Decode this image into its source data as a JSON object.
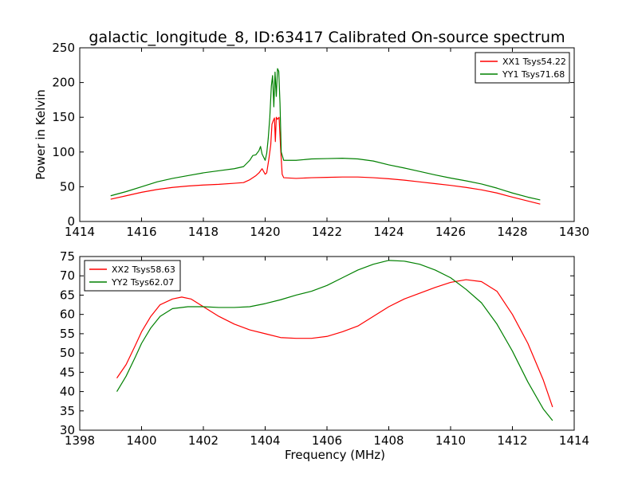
{
  "figure": {
    "title": "galactic_longitude_8, ID:63417 Calibrated On-source spectrum"
  },
  "chart_data": [
    {
      "type": "line",
      "title": "galactic_longitude_8, ID:63417 Calibrated On-source spectrum",
      "xlabel": "",
      "ylabel": "Power in Kelvin",
      "xlim": [
        1414,
        1430
      ],
      "ylim": [
        0,
        250
      ],
      "xticks": [
        1414,
        1416,
        1418,
        1420,
        1422,
        1424,
        1426,
        1428,
        1430
      ],
      "yticks": [
        0,
        50,
        100,
        150,
        200,
        250
      ],
      "grid": false,
      "legend": "top-right",
      "series": [
        {
          "name": "XX1 Tsys54.22",
          "color": "#ff0000",
          "points": [
            [
              1415.0,
              32
            ],
            [
              1415.5,
              37
            ],
            [
              1416.0,
              42
            ],
            [
              1416.5,
              46
            ],
            [
              1417.0,
              49
            ],
            [
              1417.5,
              51
            ],
            [
              1418.0,
              52.5
            ],
            [
              1418.5,
              53.5
            ],
            [
              1419.0,
              55
            ],
            [
              1419.3,
              56
            ],
            [
              1419.5,
              60
            ],
            [
              1419.7,
              66
            ],
            [
              1419.8,
              70
            ],
            [
              1419.9,
              76
            ],
            [
              1420.0,
              68
            ],
            [
              1420.05,
              70
            ],
            [
              1420.12,
              90
            ],
            [
              1420.18,
              110
            ],
            [
              1420.22,
              140
            ],
            [
              1420.26,
              145
            ],
            [
              1420.3,
              149
            ],
            [
              1420.33,
              115
            ],
            [
              1420.36,
              150
            ],
            [
              1420.4,
              147
            ],
            [
              1420.45,
              150
            ],
            [
              1420.5,
              105
            ],
            [
              1420.55,
              68
            ],
            [
              1420.6,
              63
            ],
            [
              1421.0,
              62
            ],
            [
              1421.5,
              63
            ],
            [
              1422.0,
              63.5
            ],
            [
              1422.5,
              64
            ],
            [
              1423.0,
              64
            ],
            [
              1423.5,
              63
            ],
            [
              1424.0,
              61.5
            ],
            [
              1424.5,
              59.5
            ],
            [
              1425.0,
              57
            ],
            [
              1425.5,
              54.5
            ],
            [
              1426.0,
              52
            ],
            [
              1426.5,
              49
            ],
            [
              1427.0,
              45.5
            ],
            [
              1427.5,
              41
            ],
            [
              1428.0,
              35
            ],
            [
              1428.5,
              29.5
            ],
            [
              1428.9,
              25
            ]
          ]
        },
        {
          "name": "YY1 Tsys71.68",
          "color": "#008000",
          "points": [
            [
              1415.0,
              37
            ],
            [
              1415.5,
              43
            ],
            [
              1416.0,
              50
            ],
            [
              1416.5,
              57
            ],
            [
              1417.0,
              62
            ],
            [
              1417.5,
              66
            ],
            [
              1418.0,
              70
            ],
            [
              1418.5,
              73
            ],
            [
              1419.0,
              76
            ],
            [
              1419.3,
              79
            ],
            [
              1419.5,
              88
            ],
            [
              1419.6,
              95
            ],
            [
              1419.7,
              96
            ],
            [
              1419.8,
              102
            ],
            [
              1419.85,
              108
            ],
            [
              1419.9,
              97
            ],
            [
              1420.0,
              88
            ],
            [
              1420.05,
              98
            ],
            [
              1420.1,
              120
            ],
            [
              1420.15,
              150
            ],
            [
              1420.2,
              195
            ],
            [
              1420.24,
              210
            ],
            [
              1420.28,
              165
            ],
            [
              1420.32,
              215
            ],
            [
              1420.36,
              180
            ],
            [
              1420.4,
              220
            ],
            [
              1420.44,
              216
            ],
            [
              1420.48,
              170
            ],
            [
              1420.52,
              100
            ],
            [
              1420.6,
              88
            ],
            [
              1421.0,
              88
            ],
            [
              1421.5,
              90
            ],
            [
              1422.0,
              90.5
            ],
            [
              1422.5,
              91
            ],
            [
              1423.0,
              90
            ],
            [
              1423.5,
              87
            ],
            [
              1424.0,
              81.5
            ],
            [
              1424.5,
              77
            ],
            [
              1425.0,
              72
            ],
            [
              1425.5,
              67
            ],
            [
              1426.0,
              62.5
            ],
            [
              1426.5,
              58.5
            ],
            [
              1427.0,
              54
            ],
            [
              1427.5,
              48
            ],
            [
              1428.0,
              41
            ],
            [
              1428.5,
              35
            ],
            [
              1428.9,
              31
            ]
          ]
        }
      ]
    },
    {
      "type": "line",
      "title": "",
      "xlabel": "Frequency (MHz)",
      "ylabel": "",
      "xlim": [
        1398,
        1414
      ],
      "ylim": [
        30,
        75
      ],
      "xticks": [
        1398,
        1400,
        1402,
        1404,
        1406,
        1408,
        1410,
        1412,
        1414
      ],
      "yticks": [
        30,
        35,
        40,
        45,
        50,
        55,
        60,
        65,
        70,
        75
      ],
      "grid": false,
      "legend": "top-left",
      "series": [
        {
          "name": "XX2 Tsys58.63",
          "color": "#ff0000",
          "points": [
            [
              1399.2,
              43.5
            ],
            [
              1399.5,
              47
            ],
            [
              1399.8,
              52
            ],
            [
              1400.0,
              55.5
            ],
            [
              1400.3,
              59.5
            ],
            [
              1400.6,
              62.5
            ],
            [
              1401.0,
              64
            ],
            [
              1401.3,
              64.5
            ],
            [
              1401.6,
              64
            ],
            [
              1402.0,
              62
            ],
            [
              1402.5,
              59.5
            ],
            [
              1403.0,
              57.5
            ],
            [
              1403.5,
              56
            ],
            [
              1404.0,
              55
            ],
            [
              1404.5,
              54
            ],
            [
              1405.0,
              53.8
            ],
            [
              1405.5,
              53.8
            ],
            [
              1406.0,
              54.3
            ],
            [
              1406.5,
              55.5
            ],
            [
              1407.0,
              57
            ],
            [
              1407.5,
              59.5
            ],
            [
              1408.0,
              62
            ],
            [
              1408.5,
              64
            ],
            [
              1409.0,
              65.5
            ],
            [
              1409.5,
              67
            ],
            [
              1410.0,
              68.3
            ],
            [
              1410.5,
              69
            ],
            [
              1411.0,
              68.5
            ],
            [
              1411.5,
              66
            ],
            [
              1412.0,
              60
            ],
            [
              1412.5,
              52.5
            ],
            [
              1413.0,
              43
            ],
            [
              1413.3,
              36
            ]
          ]
        },
        {
          "name": "YY2 Tsys62.07",
          "color": "#008000",
          "points": [
            [
              1399.2,
              40
            ],
            [
              1399.5,
              44
            ],
            [
              1399.8,
              49
            ],
            [
              1400.0,
              52.5
            ],
            [
              1400.3,
              56.5
            ],
            [
              1400.6,
              59.5
            ],
            [
              1401.0,
              61.5
            ],
            [
              1401.5,
              62
            ],
            [
              1402.0,
              62
            ],
            [
              1402.5,
              61.8
            ],
            [
              1403.0,
              61.8
            ],
            [
              1403.5,
              62
            ],
            [
              1404.0,
              62.8
            ],
            [
              1404.5,
              63.8
            ],
            [
              1405.0,
              65
            ],
            [
              1405.5,
              66
            ],
            [
              1406.0,
              67.5
            ],
            [
              1406.5,
              69.5
            ],
            [
              1407.0,
              71.5
            ],
            [
              1407.5,
              73
            ],
            [
              1408.0,
              74
            ],
            [
              1408.5,
              73.8
            ],
            [
              1409.0,
              73
            ],
            [
              1409.5,
              71.5
            ],
            [
              1410.0,
              69.5
            ],
            [
              1410.5,
              66.5
            ],
            [
              1411.0,
              63
            ],
            [
              1411.5,
              57.5
            ],
            [
              1412.0,
              50.5
            ],
            [
              1412.5,
              42.5
            ],
            [
              1413.0,
              35.5
            ],
            [
              1413.3,
              32.5
            ]
          ]
        }
      ]
    }
  ]
}
